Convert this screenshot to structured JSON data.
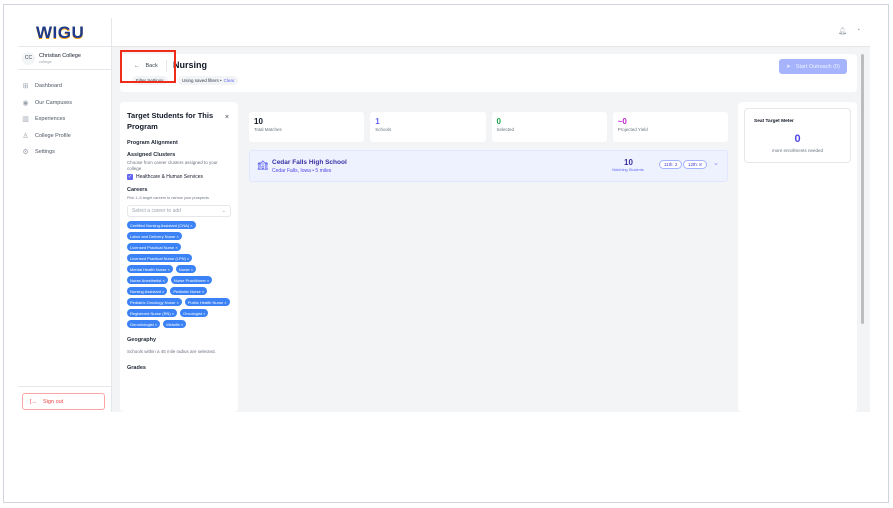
{
  "app": {
    "logo": "WIGU",
    "org_initials": "CC",
    "org_name": "Christian College",
    "org_type": "college"
  },
  "sidebar": {
    "items": [
      {
        "label": "Dashboard",
        "icon": "grid-icon"
      },
      {
        "label": "Our Campuses",
        "icon": "eye-icon"
      },
      {
        "label": "Experiences",
        "icon": "building-icon"
      },
      {
        "label": "College Profile",
        "icon": "user-icon"
      },
      {
        "label": "Settings",
        "icon": "gear-icon"
      }
    ],
    "sign_out": "Sign out"
  },
  "topbar": {
    "icons": [
      "bell-icon",
      "help-icon"
    ]
  },
  "header": {
    "back": "Back",
    "title": "Nursing",
    "filter_chip": "Filter Settings",
    "saved_filters": "Using saved filters •",
    "clear": "Clear",
    "start_outreach": "Start Outreach (0)"
  },
  "filters": {
    "title": "Target Students for This Program",
    "program_alignment": "Program Alignment",
    "assigned_clusters": "Assigned Clusters",
    "clusters_help": "Choose from career clusters assigned to your college",
    "cluster": "Healthcare & Human Services",
    "careers": "Careers",
    "careers_help": "Pick 1–5 target careers to narrow your prospects",
    "career_placeholder": "Select a career to add",
    "careers_selected": [
      "Certified Nursing Assistant (CNA) ×",
      "Labor and Delivery Nurse ×",
      "Licensed Practical Nurse ×",
      "Licensed Practical Nurse (LPN) ×",
      "Mental Health Nurse ×",
      "Nurse ×",
      "Nurse Anesthetist ×",
      "Nurse Practitioner ×",
      "Nursing Assistant ×",
      "Pediatric Nurse ×",
      "Pediatric Oncology Nurse ×",
      "Public Health Nurse ×",
      "Registered Nurse (RN) ×",
      "Oncologist ×",
      "Gerontologist ×",
      "Midwife ×"
    ],
    "geography": "Geography",
    "geography_help": "Schools within a 45 mile radius are selected.",
    "grades": "Grades"
  },
  "stats": [
    {
      "value": "10",
      "label": "Total Matches",
      "color": "#111827"
    },
    {
      "value": "1",
      "label": "Schools",
      "color": "#6366f1"
    },
    {
      "value": "0",
      "label": "Selected",
      "color": "#16a34a"
    },
    {
      "value": "~0",
      "label": "Projected Yield",
      "color": "#c026d3"
    }
  ],
  "school": {
    "name": "Cedar Falls High School",
    "location": "Cedar Falls, Iowa • 5 miles",
    "matching": "10",
    "matching_label": "Matching Students",
    "grade_chips": [
      "11th: 2",
      "12th: 8"
    ]
  },
  "meter": {
    "title": "Seat Target Meter",
    "value": "0",
    "label": "more enrollments needed"
  }
}
